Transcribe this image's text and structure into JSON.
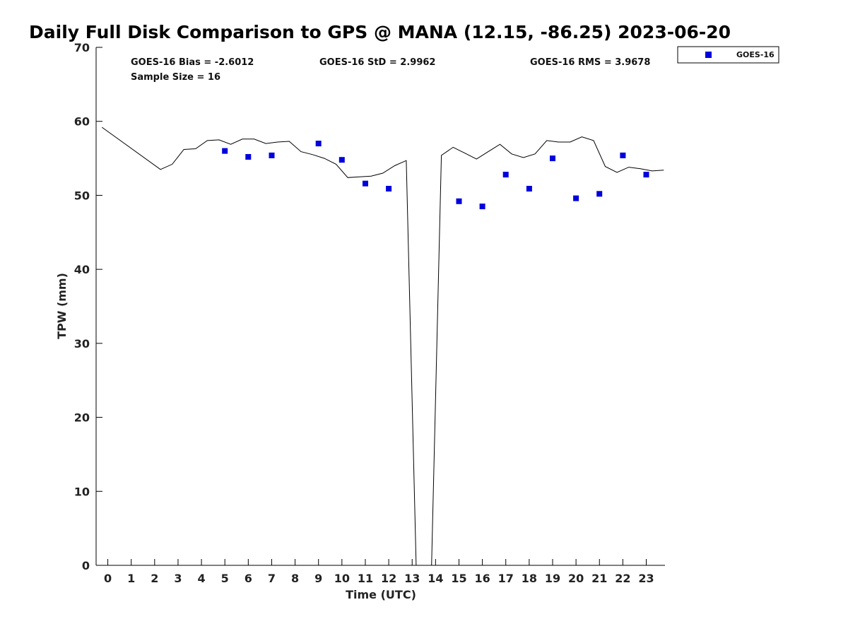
{
  "chart_data": {
    "type": "scatter",
    "title": "Daily Full Disk Comparison to GPS @ MANA (12.15, -86.25) 2023-06-20",
    "xlabel": "Time (UTC)",
    "ylabel": "TPW (mm)",
    "xlim": [
      -0.5,
      23.8
    ],
    "ylim": [
      0,
      70
    ],
    "xticks": [
      "0",
      "1",
      "2",
      "3",
      "4",
      "5",
      "6",
      "7",
      "8",
      "9",
      "10",
      "11",
      "12",
      "13",
      "14",
      "15",
      "16",
      "17",
      "18",
      "19",
      "20",
      "21",
      "22",
      "23"
    ],
    "yticks": [
      "0",
      "10",
      "20",
      "30",
      "40",
      "50",
      "60",
      "70"
    ],
    "grid": false,
    "legend_position": "outside-top-right",
    "stats": {
      "bias": "GOES-16 Bias = -2.6012",
      "std": "GOES-16 StD = 2.9962",
      "rms": "GOES-16 RMS = 3.9678",
      "sample": "Sample Size = 16"
    },
    "series": [
      {
        "name": "GOES-16",
        "kind": "scatter",
        "color": "#0000dd",
        "x": [
          5,
          6,
          7,
          9,
          10,
          11,
          12,
          15,
          16,
          17,
          18,
          19,
          20,
          21,
          22,
          23
        ],
        "y": [
          56.0,
          55.2,
          55.4,
          57.0,
          54.8,
          51.6,
          50.9,
          49.2,
          48.5,
          52.8,
          50.9,
          55.0,
          49.6,
          50.2,
          55.4,
          52.8
        ]
      },
      {
        "kind": "line",
        "color": "#000000",
        "x": [
          -0.25,
          2.25,
          2.75,
          3.25,
          3.75,
          4.25,
          4.75,
          5.25,
          5.75,
          6.25,
          6.75,
          7.25,
          7.75,
          8.25,
          8.75,
          9.25,
          9.75,
          10.25,
          10.75,
          11.25,
          11.75,
          12.25,
          12.75,
          13.17,
          13.83,
          14.25,
          14.75,
          15.25,
          15.75,
          16.25,
          16.75,
          17.25,
          17.75,
          18.25,
          18.75,
          19.25,
          19.75,
          20.25,
          20.75,
          21.25,
          21.75,
          22.25,
          22.75,
          23.25,
          23.75
        ],
        "y": [
          59.2,
          53.5,
          54.2,
          56.2,
          56.3,
          57.4,
          57.5,
          56.9,
          57.6,
          57.6,
          57.0,
          57.2,
          57.3,
          55.9,
          55.5,
          55.0,
          54.2,
          52.4,
          52.5,
          52.6,
          53.0,
          54.0,
          54.7,
          0.0,
          0.0,
          55.4,
          56.5,
          55.7,
          54.9,
          55.9,
          56.9,
          55.6,
          55.1,
          55.6,
          57.4,
          57.2,
          57.2,
          57.9,
          57.4,
          53.9,
          53.1,
          53.8,
          53.6,
          53.3,
          53.4
        ]
      }
    ]
  }
}
